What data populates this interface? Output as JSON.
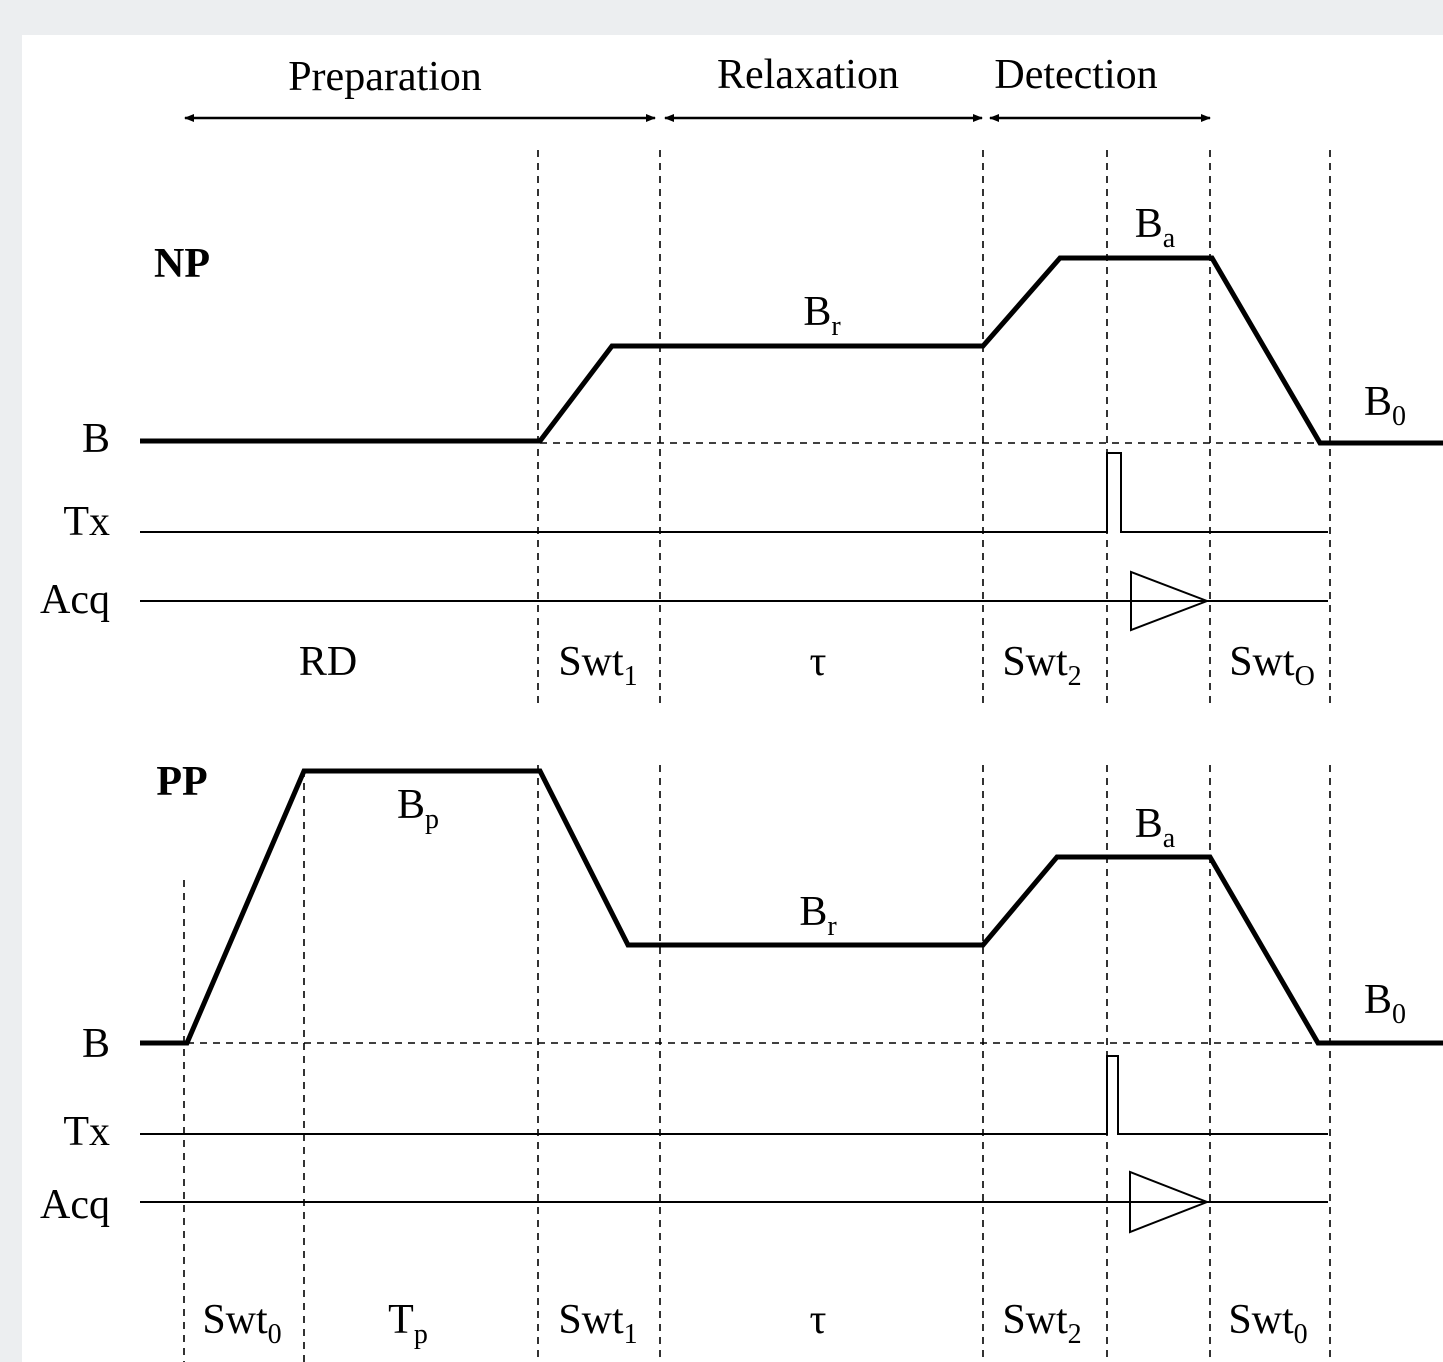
{
  "phases": [
    "Preparation",
    "Relaxation",
    "Detection"
  ],
  "panels": [
    {
      "name": "NP",
      "signals": [
        "B",
        "Tx",
        "Acq"
      ],
      "levels": [
        {
          "base": "B",
          "sub": "r"
        },
        {
          "base": "B",
          "sub": "a"
        },
        {
          "base": "B",
          "sub": "0"
        }
      ],
      "intervals": [
        "RD",
        {
          "base": "Swt",
          "sub": "1"
        },
        "τ",
        {
          "base": "Swt",
          "sub": "2"
        },
        {
          "base": "Swt",
          "sub": "O"
        }
      ]
    },
    {
      "name": "PP",
      "signals": [
        "B",
        "Tx",
        "Acq"
      ],
      "levels": [
        {
          "base": "B",
          "sub": "p"
        },
        {
          "base": "B",
          "sub": "r"
        },
        {
          "base": "B",
          "sub": "a"
        },
        {
          "base": "B",
          "sub": "0"
        }
      ],
      "intervals": [
        {
          "base": "Swt",
          "sub": "0"
        },
        {
          "base": "T",
          "sub": "p"
        },
        {
          "base": "Swt",
          "sub": "1"
        },
        "τ",
        {
          "base": "Swt",
          "sub": "2"
        },
        {
          "base": "Swt",
          "sub": "0"
        }
      ]
    }
  ]
}
